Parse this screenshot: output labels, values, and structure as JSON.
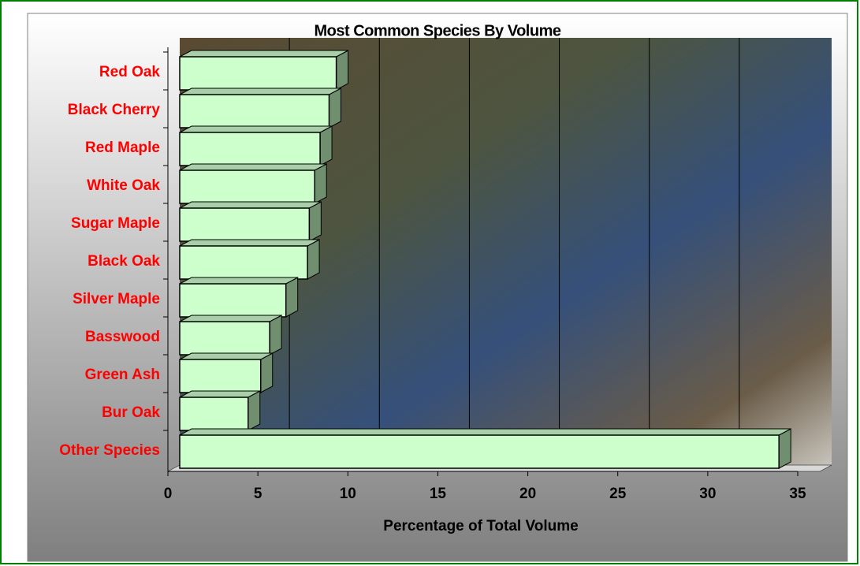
{
  "chart_data": {
    "type": "bar3d",
    "title": "Most Common Species By Volume",
    "x_label": "Percentage of Total Volume",
    "categories": [
      "Red Oak",
      "Black Cherry",
      "Red Maple",
      "White Oak",
      "Sugar Maple",
      "Black Oak",
      "Silver Maple",
      "Basswood",
      "Green Ash",
      "Bur Oak",
      "Other Species"
    ],
    "values": [
      8.7,
      8.3,
      7.8,
      7.5,
      7.2,
      7.1,
      5.9,
      5.0,
      4.5,
      3.8,
      33.3
    ],
    "color": "#ccffcc",
    "label_color": "#ff0000",
    "xlim": [
      0,
      35
    ],
    "xticks": [
      0,
      5,
      10,
      15,
      20,
      25,
      30,
      35
    ],
    "grid": true
  }
}
